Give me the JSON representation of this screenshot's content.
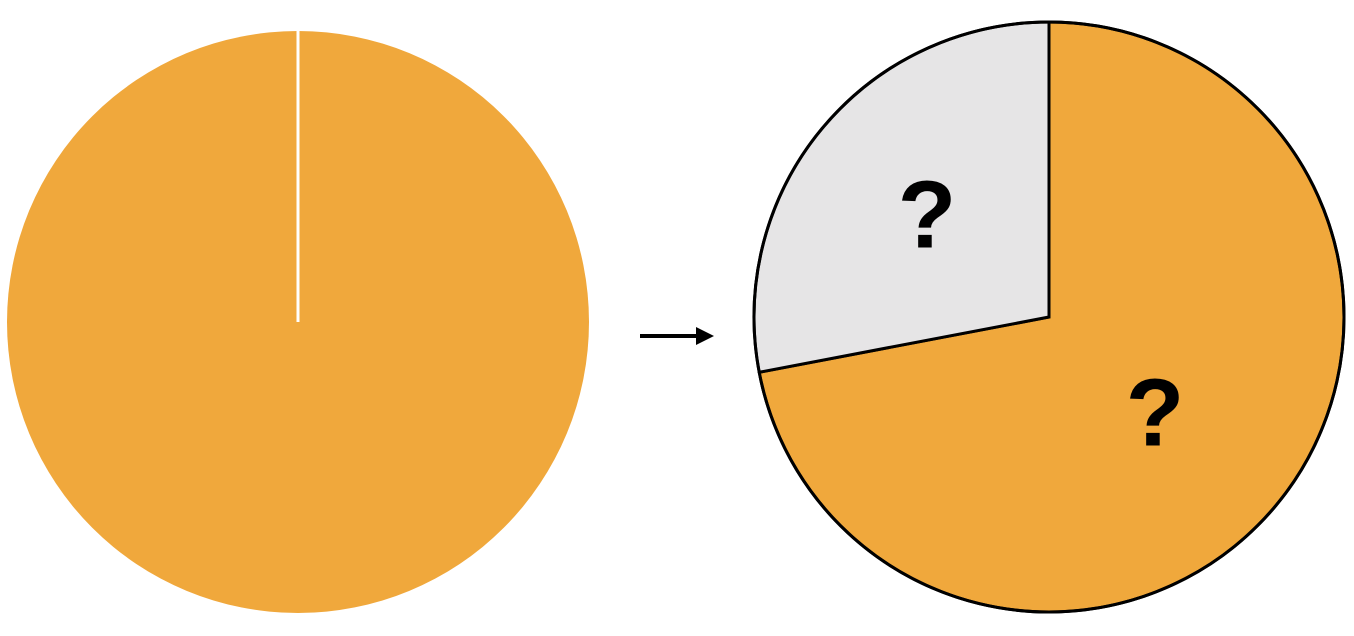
{
  "colors": {
    "orange": "#F0A83C",
    "gray": "#E6E5E6",
    "outline": "#000000",
    "divider": "#FFFFFF",
    "arrow": "#000000",
    "question_mark": "#000000"
  },
  "left_pie": {
    "description_fill": "orange",
    "slices": [
      {
        "fraction": 1.0,
        "color": "orange"
      }
    ]
  },
  "right_pie": {
    "slices": [
      {
        "fraction": 0.72,
        "color": "orange",
        "label": "?"
      },
      {
        "fraction": 0.28,
        "color": "gray",
        "label": "?"
      }
    ]
  },
  "arrow": {
    "direction": "right"
  }
}
